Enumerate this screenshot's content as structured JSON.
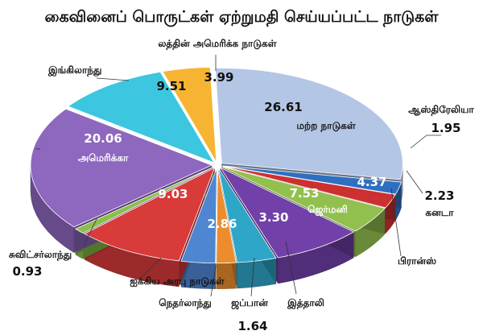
{
  "chart_data": {
    "type": "pie",
    "style": "3d-exploded",
    "title": "கைவினைப் பொருட்கள் ஏற்றுமதி செய்யப்பட்ட நாடுகள்",
    "unit": "",
    "slices": [
      {
        "label": "மற்ற நாடுகள்",
        "value": 26.61,
        "color": "#b4c6e6"
      },
      {
        "label": "ஆஸ்திரேலியா",
        "value": 1.95,
        "color": "#2e6fc0"
      },
      {
        "label": "கனடா",
        "value": 2.23,
        "color": "#cc3030"
      },
      {
        "label": "பிரான்ஸ்",
        "value": 4.37,
        "color": "#92c04e"
      },
      {
        "label": "ஜெர்மனி",
        "value": 7.53,
        "color": "#7140a8"
      },
      {
        "label": "இத்தாலி",
        "value": 3.3,
        "color": "#2ea6c8"
      },
      {
        "label": "ஜப்பான்",
        "value": 1.64,
        "color": "#ec8c2c"
      },
      {
        "label": "நெதர்லாந்து",
        "value": 2.86,
        "color": "#4f86d2"
      },
      {
        "label": "ஐக்கிய அரபு நாடுகள்",
        "value": 9.03,
        "color": "#d93a3a"
      },
      {
        "label": "சுவிட்சர்லாந்து",
        "value": 0.93,
        "color": "#8cbf4a"
      },
      {
        "label": "அமெரிக்கா",
        "value": 20.06,
        "color": "#8e67bf"
      },
      {
        "label": "இங்கிலாந்து",
        "value": 9.51,
        "color": "#3cc6e0"
      },
      {
        "label": "லத்தின் அமெரிக்க நாடுகள்",
        "value": 3.99,
        "color": "#f6b432"
      }
    ]
  }
}
